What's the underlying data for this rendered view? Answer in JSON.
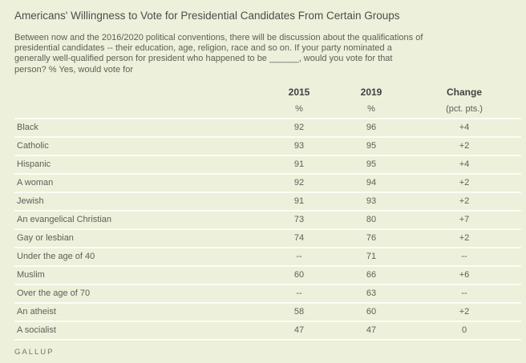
{
  "page": {
    "title": "Americans' Willingness to Vote for Presidential Candidates From Certain Groups",
    "subtitle": "Between now and the 2016/2020 political conventions, there will be discussion about the qualifications of presidential candidates -- their education, age, religion, race and so on. If your party nominated a generally well-qualified person for president who happened to be ______, would you vote for that person? % Yes, would vote for",
    "source": "GALLUP"
  },
  "colors": {
    "background": "#edf0da",
    "separator_line": "#fcfdf5",
    "title_text": "#4c4e4b",
    "header_text": "#404240",
    "body_text": "#5e605a"
  },
  "table": {
    "headers": {
      "col2015": "2015",
      "col2019": "2019",
      "colChange": "Change"
    },
    "subheaders": {
      "col2015": "%",
      "col2019": "%",
      "colChange": "(pct. pts.)"
    },
    "rows": [
      {
        "label": "Black",
        "y2015": "92",
        "y2019": "96",
        "change": "+4"
      },
      {
        "label": "Catholic",
        "y2015": "93",
        "y2019": "95",
        "change": "+2"
      },
      {
        "label": "Hispanic",
        "y2015": "91",
        "y2019": "95",
        "change": "+4"
      },
      {
        "label": "A woman",
        "y2015": "92",
        "y2019": "94",
        "change": "+2"
      },
      {
        "label": "Jewish",
        "y2015": "91",
        "y2019": "93",
        "change": "+2"
      },
      {
        "label": "An evangelical Christian",
        "y2015": "73",
        "y2019": "80",
        "change": "+7"
      },
      {
        "label": "Gay or lesbian",
        "y2015": "74",
        "y2019": "76",
        "change": "+2"
      },
      {
        "label": "Under the age of 40",
        "y2015": "--",
        "y2019": "71",
        "change": "--"
      },
      {
        "label": "Muslim",
        "y2015": "60",
        "y2019": "66",
        "change": "+6"
      },
      {
        "label": "Over the age of 70",
        "y2015": "--",
        "y2019": "63",
        "change": "--"
      },
      {
        "label": "An atheist",
        "y2015": "58",
        "y2019": "60",
        "change": "+2"
      },
      {
        "label": "A socialist",
        "y2015": "47",
        "y2019": "47",
        "change": "0"
      }
    ]
  },
  "chart_data": {
    "type": "table",
    "title": "Americans' Willingness to Vote for Presidential Candidates From Certain Groups",
    "subtitle": "Between now and the 2016/2020 political conventions, there will be discussion about the qualifications of presidential candidates -- their education, age, religion, race and so on. If your party nominated a generally well-qualified person for president who happened to be ______, would you vote for that person? % Yes, would vote for",
    "categories": [
      "Black",
      "Catholic",
      "Hispanic",
      "A woman",
      "Jewish",
      "An evangelical Christian",
      "Gay or lesbian",
      "Under the age of 40",
      "Muslim",
      "Over the age of 70",
      "An atheist",
      "A socialist"
    ],
    "series": [
      {
        "name": "2015 (%)",
        "values": [
          92,
          93,
          91,
          92,
          91,
          73,
          74,
          null,
          60,
          null,
          58,
          47
        ]
      },
      {
        "name": "2019 (%)",
        "values": [
          96,
          95,
          95,
          94,
          93,
          80,
          76,
          71,
          66,
          63,
          60,
          47
        ]
      },
      {
        "name": "Change (pct. pts.)",
        "values": [
          4,
          2,
          4,
          2,
          2,
          7,
          2,
          null,
          6,
          null,
          2,
          0
        ]
      }
    ],
    "source": "GALLUP"
  }
}
